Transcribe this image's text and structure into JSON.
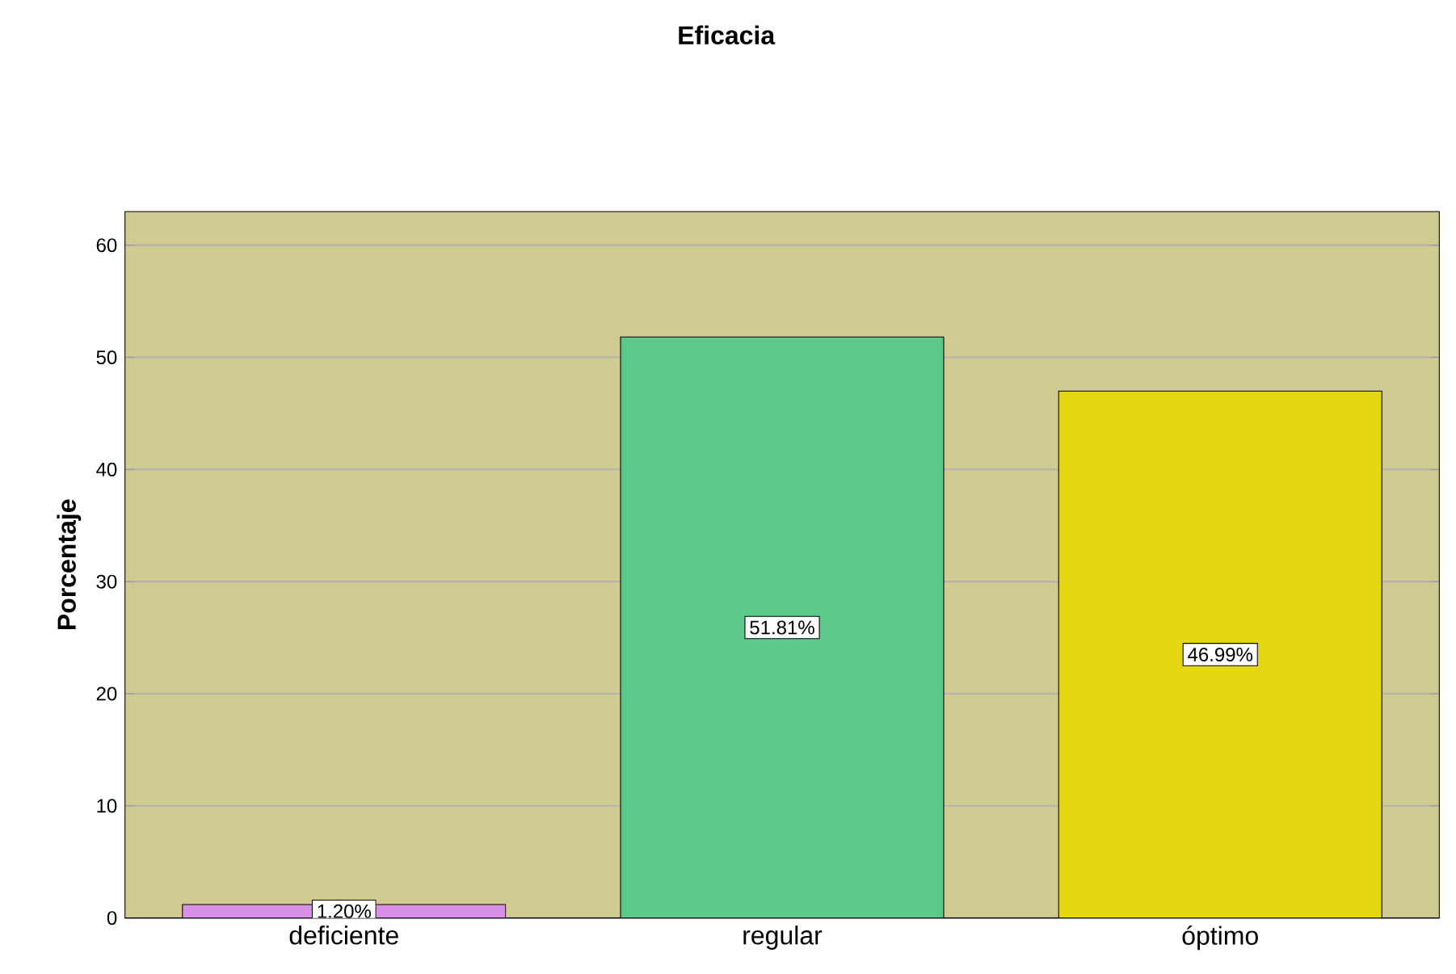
{
  "chart_data": {
    "type": "bar",
    "title": "Eficacia",
    "ylabel": "Porcentaje",
    "categories": [
      "deficiente",
      "regular",
      "óptimo"
    ],
    "values": [
      1.2,
      51.81,
      46.99
    ],
    "value_labels": [
      "1.20%",
      "51.81%",
      "46.99%"
    ],
    "colors": [
      "#d98ee8",
      "#5cc98a",
      "#e5d712"
    ],
    "ylim": [
      0,
      63
    ],
    "yticks": [
      0,
      10,
      20,
      30,
      40,
      50,
      60
    ],
    "grid": "y"
  }
}
